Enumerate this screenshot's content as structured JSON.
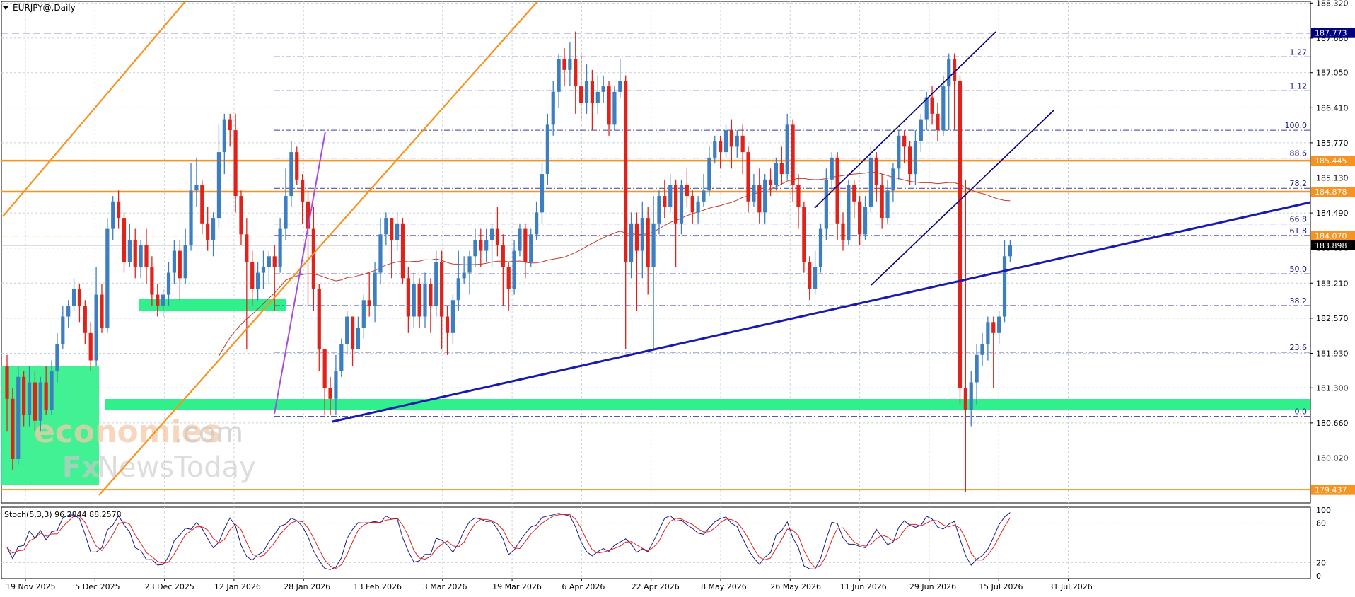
{
  "header": {
    "symbol_label": "EURJPY@,Daily"
  },
  "chart_data": {
    "type": "candlestick",
    "title": "EURJPY@,Daily",
    "ylim": [
      179.2,
      188.35
    ],
    "y_ticks": [
      188.32,
      187.68,
      187.05,
      186.41,
      185.77,
      185.13,
      184.49,
      183.85,
      183.21,
      182.57,
      181.93,
      181.3,
      180.66,
      180.02
    ],
    "x_ticks": [
      "19 Nov 2025",
      "5 Dec 2025",
      "23 Dec 2025",
      "12 Jan 2026",
      "28 Jan 2026",
      "13 Feb 2026",
      "3 Mar 2026",
      "19 Mar 2026",
      "6 Apr 2026",
      "22 Apr 2026",
      "8 May 2026",
      "26 May 2026",
      "11 Jun 2026",
      "29 Jun 2026",
      "15 Jul 2026",
      "31 Jul 2026"
    ],
    "price_labels": [
      {
        "value": "187.773",
        "color": "#000080"
      },
      {
        "value": "185.445",
        "color": "#f7931e"
      },
      {
        "value": "184.878",
        "color": "#f7931e"
      },
      {
        "value": "184.070",
        "color": "#f7931e"
      },
      {
        "value": "183.898",
        "color": "#000000"
      },
      {
        "value": "179.437",
        "color": "#f7931e"
      }
    ],
    "fib_levels": [
      {
        "label": "1.27",
        "price": 187.34
      },
      {
        "label": "1.12",
        "price": 186.72
      },
      {
        "label": "100.0",
        "price": 186.0
      },
      {
        "label": "88.6",
        "price": 185.49
      },
      {
        "label": "78.2",
        "price": 184.94
      },
      {
        "label": "66.8",
        "price": 184.29
      },
      {
        "label": "61.8",
        "price": 184.08
      },
      {
        "label": "50.0",
        "price": 183.38
      },
      {
        "label": "38.2",
        "price": 182.8
      },
      {
        "label": "23.6",
        "price": 181.95
      },
      {
        "label": "0.0",
        "price": 180.78
      }
    ],
    "candles": [
      [
        181.7,
        181.1,
        181.9,
        180.5
      ],
      [
        181.1,
        180.0,
        181.3,
        179.8
      ],
      [
        180.0,
        181.5,
        181.7,
        179.9
      ],
      [
        181.5,
        180.8,
        181.6,
        180.6
      ],
      [
        180.8,
        181.4,
        181.7,
        180.6
      ],
      [
        181.4,
        180.7,
        181.6,
        180.5
      ],
      [
        180.7,
        181.4,
        181.5,
        180.5
      ],
      [
        181.4,
        180.9,
        181.7,
        180.8
      ],
      [
        180.9,
        181.6,
        181.8,
        180.8
      ],
      [
        181.6,
        182.1,
        182.3,
        181.4
      ],
      [
        182.1,
        182.6,
        182.8,
        182.0
      ],
      [
        182.6,
        182.8,
        182.9,
        182.4
      ],
      [
        182.8,
        183.1,
        183.3,
        182.7
      ],
      [
        183.1,
        182.8,
        183.2,
        182.5
      ],
      [
        182.8,
        182.3,
        182.9,
        182.1
      ],
      [
        182.3,
        181.8,
        182.5,
        181.6
      ],
      [
        181.8,
        183.0,
        183.5,
        181.7
      ],
      [
        183.0,
        182.4,
        183.2,
        182.3
      ],
      [
        182.4,
        184.2,
        184.4,
        182.3
      ],
      [
        184.2,
        184.7,
        184.8,
        184.0
      ],
      [
        184.7,
        184.4,
        184.9,
        184.2
      ],
      [
        184.4,
        183.6,
        184.5,
        183.4
      ],
      [
        183.6,
        184.0,
        184.3,
        183.5
      ],
      [
        184.0,
        183.5,
        184.2,
        183.3
      ],
      [
        183.5,
        183.9,
        184.0,
        183.3
      ],
      [
        183.9,
        183.5,
        184.2,
        183.2
      ],
      [
        183.5,
        183.0,
        183.7,
        182.8
      ],
      [
        183.0,
        182.8,
        183.2,
        182.6
      ],
      [
        182.8,
        183.0,
        183.1,
        182.6
      ],
      [
        183.0,
        183.4,
        183.6,
        182.8
      ],
      [
        183.4,
        183.8,
        184.0,
        183.2
      ],
      [
        183.8,
        183.3,
        184.0,
        182.9
      ],
      [
        183.3,
        183.9,
        184.2,
        183.2
      ],
      [
        183.9,
        184.9,
        185.4,
        183.8
      ],
      [
        184.9,
        185.0,
        185.5,
        184.6
      ],
      [
        185.0,
        184.3,
        185.1,
        184.1
      ],
      [
        184.3,
        184.0,
        184.6,
        183.8
      ],
      [
        184.0,
        184.4,
        184.5,
        183.7
      ],
      [
        184.4,
        185.6,
        186.1,
        184.2
      ],
      [
        185.6,
        186.2,
        186.3,
        185.2
      ],
      [
        186.2,
        186.0,
        186.3,
        185.7
      ],
      [
        186.0,
        184.8,
        186.3,
        184.5
      ],
      [
        184.8,
        184.1,
        184.9,
        183.9
      ],
      [
        184.1,
        183.6,
        184.4,
        182.0
      ],
      [
        183.6,
        183.1,
        183.8,
        182.8
      ],
      [
        183.1,
        183.4,
        183.6,
        182.9
      ],
      [
        183.4,
        183.5,
        183.8,
        183.1
      ],
      [
        183.5,
        183.7,
        183.8,
        183.2
      ],
      [
        183.7,
        183.5,
        183.9,
        182.7
      ],
      [
        183.5,
        184.2,
        184.4,
        183.4
      ],
      [
        184.2,
        184.8,
        185.3,
        184.0
      ],
      [
        184.8,
        185.6,
        185.8,
        184.6
      ],
      [
        185.6,
        185.1,
        185.7,
        185.0
      ],
      [
        185.1,
        184.7,
        185.2,
        184.3
      ],
      [
        184.7,
        184.2,
        184.9,
        182.8
      ],
      [
        184.2,
        183.1,
        184.6,
        182.7
      ],
      [
        183.1,
        182.0,
        183.2,
        181.6
      ],
      [
        182.0,
        181.3,
        182.0,
        180.8
      ],
      [
        181.3,
        181.1,
        181.5,
        180.8
      ],
      [
        181.1,
        181.6,
        181.9,
        180.8
      ],
      [
        181.6,
        182.1,
        182.2,
        181.5
      ],
      [
        182.1,
        182.6,
        182.7,
        181.9
      ],
      [
        182.6,
        182.0,
        182.6,
        181.7
      ],
      [
        182.0,
        182.4,
        182.6,
        182.0
      ],
      [
        182.4,
        182.9,
        183.0,
        182.2
      ],
      [
        182.9,
        182.8,
        183.4,
        182.6
      ],
      [
        182.8,
        183.4,
        183.6,
        182.5
      ],
      [
        183.4,
        184.1,
        184.4,
        183.2
      ],
      [
        184.1,
        184.4,
        184.5,
        183.9
      ],
      [
        184.4,
        184.0,
        184.4,
        183.3
      ],
      [
        184.0,
        184.3,
        184.5,
        183.8
      ],
      [
        184.3,
        183.3,
        184.4,
        183.2
      ],
      [
        183.3,
        182.6,
        183.5,
        182.3
      ],
      [
        182.6,
        183.2,
        183.4,
        182.4
      ],
      [
        183.2,
        182.6,
        183.3,
        182.4
      ],
      [
        182.6,
        183.2,
        183.4,
        182.4
      ],
      [
        183.2,
        182.8,
        183.3,
        182.3
      ],
      [
        182.8,
        183.6,
        183.8,
        182.6
      ],
      [
        183.6,
        182.6,
        183.8,
        182.0
      ],
      [
        182.6,
        182.3,
        182.8,
        181.9
      ],
      [
        182.3,
        182.9,
        183.0,
        182.1
      ],
      [
        182.9,
        183.3,
        183.8,
        182.7
      ],
      [
        183.3,
        183.4,
        183.7,
        183.2
      ],
      [
        183.4,
        183.7,
        183.8,
        183.0
      ],
      [
        183.7,
        184.0,
        184.2,
        183.5
      ],
      [
        184.0,
        183.8,
        184.2,
        183.5
      ],
      [
        183.8,
        184.0,
        184.2,
        183.6
      ],
      [
        184.0,
        184.2,
        184.3,
        183.5
      ],
      [
        184.2,
        183.9,
        184.6,
        183.7
      ],
      [
        183.9,
        183.5,
        184.1,
        182.8
      ],
      [
        183.5,
        183.1,
        183.6,
        182.7
      ],
      [
        183.1,
        183.8,
        184.0,
        183.0
      ],
      [
        183.8,
        184.2,
        184.3,
        183.7
      ],
      [
        184.2,
        183.6,
        184.3,
        183.3
      ],
      [
        183.6,
        184.1,
        184.2,
        183.5
      ],
      [
        184.1,
        184.5,
        184.7,
        184.0
      ],
      [
        184.5,
        185.2,
        185.4,
        184.3
      ],
      [
        185.2,
        186.1,
        186.3,
        185.0
      ],
      [
        186.1,
        186.7,
        186.9,
        185.9
      ],
      [
        186.7,
        187.3,
        187.4,
        186.4
      ],
      [
        187.3,
        187.1,
        187.5,
        186.8
      ],
      [
        187.1,
        187.3,
        187.6,
        186.8
      ],
      [
        187.3,
        186.8,
        187.8,
        186.3
      ],
      [
        186.8,
        186.5,
        187.4,
        186.2
      ],
      [
        186.5,
        186.9,
        187.2,
        186.3
      ],
      [
        186.9,
        186.5,
        187.1,
        186.0
      ],
      [
        186.5,
        186.7,
        187.0,
        186.3
      ],
      [
        186.7,
        186.8,
        187.0,
        186.5
      ],
      [
        186.8,
        186.1,
        186.9,
        185.9
      ],
      [
        186.1,
        186.7,
        186.8,
        186.0
      ],
      [
        186.7,
        186.9,
        187.3,
        186.6
      ],
      [
        186.9,
        183.6,
        187.0,
        182.0
      ],
      [
        183.6,
        184.3,
        184.5,
        183.3
      ],
      [
        184.3,
        183.8,
        184.5,
        182.7
      ],
      [
        183.8,
        184.4,
        184.7,
        183.3
      ],
      [
        184.4,
        183.5,
        184.6,
        183.0
      ],
      [
        183.5,
        184.3,
        184.8,
        182.0
      ],
      [
        184.3,
        184.8,
        184.9,
        184.1
      ],
      [
        184.8,
        184.6,
        185.1,
        184.4
      ],
      [
        184.6,
        185.0,
        185.2,
        184.5
      ],
      [
        185.0,
        184.3,
        185.1,
        183.5
      ],
      [
        184.3,
        185.0,
        185.1,
        184.1
      ],
      [
        185.0,
        184.8,
        185.3,
        184.6
      ],
      [
        184.8,
        184.5,
        184.9,
        184.3
      ],
      [
        184.5,
        184.7,
        184.8,
        184.3
      ],
      [
        184.7,
        184.9,
        185.2,
        184.6
      ],
      [
        184.9,
        185.5,
        185.7,
        184.8
      ],
      [
        185.5,
        185.8,
        185.9,
        185.4
      ],
      [
        185.8,
        185.6,
        185.9,
        185.3
      ],
      [
        185.6,
        186.0,
        186.1,
        185.5
      ],
      [
        186.0,
        185.7,
        186.2,
        185.3
      ],
      [
        185.7,
        185.9,
        186.0,
        185.5
      ],
      [
        185.9,
        185.6,
        186.1,
        185.2
      ],
      [
        185.6,
        184.7,
        185.7,
        184.5
      ],
      [
        184.7,
        185.0,
        185.2,
        184.6
      ],
      [
        185.0,
        184.5,
        185.3,
        184.3
      ],
      [
        184.5,
        185.1,
        185.2,
        184.3
      ],
      [
        185.1,
        185.0,
        185.3,
        184.8
      ],
      [
        185.0,
        185.4,
        185.5,
        184.9
      ],
      [
        185.4,
        185.2,
        185.7,
        185.0
      ],
      [
        185.2,
        186.1,
        186.3,
        185.1
      ],
      [
        186.1,
        185.0,
        186.2,
        184.7
      ],
      [
        185.0,
        184.6,
        185.2,
        184.2
      ],
      [
        184.6,
        183.6,
        184.7,
        183.4
      ],
      [
        183.6,
        183.1,
        183.7,
        182.9
      ],
      [
        183.1,
        183.5,
        183.8,
        183.0
      ],
      [
        183.5,
        184.2,
        184.3,
        183.4
      ],
      [
        184.2,
        185.1,
        185.3,
        184.0
      ],
      [
        185.1,
        185.5,
        185.6,
        184.9
      ],
      [
        185.5,
        184.3,
        185.6,
        184.0
      ],
      [
        184.3,
        184.0,
        184.5,
        183.8
      ],
      [
        184.0,
        185.0,
        185.1,
        183.9
      ],
      [
        185.0,
        184.7,
        185.1,
        184.4
      ],
      [
        184.7,
        184.1,
        184.8,
        183.9
      ],
      [
        184.1,
        184.6,
        184.8,
        184.0
      ],
      [
        184.6,
        185.5,
        185.7,
        184.5
      ],
      [
        185.5,
        185.0,
        185.6,
        184.7
      ],
      [
        185.0,
        184.4,
        185.2,
        184.2
      ],
      [
        184.4,
        184.9,
        185.1,
        184.3
      ],
      [
        184.9,
        185.3,
        185.4,
        184.7
      ],
      [
        185.3,
        185.9,
        186.0,
        185.1
      ],
      [
        185.9,
        185.7,
        186.0,
        185.4
      ],
      [
        185.7,
        185.2,
        185.8,
        185.0
      ],
      [
        185.2,
        185.8,
        186.0,
        185.0
      ],
      [
        185.8,
        186.2,
        186.3,
        185.6
      ],
      [
        186.2,
        186.6,
        186.7,
        186.0
      ],
      [
        186.6,
        186.3,
        186.8,
        186.1
      ],
      [
        186.3,
        186.0,
        186.5,
        185.8
      ],
      [
        186.0,
        186.8,
        187.0,
        185.9
      ],
      [
        186.8,
        187.3,
        187.4,
        186.0
      ],
      [
        187.3,
        186.9,
        187.4,
        186.0
      ],
      [
        186.9,
        181.3,
        187.0,
        181.0
      ],
      [
        181.3,
        180.9,
        185.1,
        179.4
      ],
      [
        180.9,
        181.4,
        181.6,
        180.6
      ],
      [
        181.4,
        181.9,
        182.1,
        181.0
      ],
      [
        181.9,
        182.1,
        182.3,
        181.7
      ],
      [
        182.1,
        182.5,
        182.6,
        181.8
      ],
      [
        182.5,
        182.3,
        182.6,
        181.3
      ],
      [
        182.3,
        182.6,
        182.7,
        182.1
      ],
      [
        182.6,
        183.7,
        184.0,
        182.5
      ],
      [
        183.7,
        183.9,
        184.0,
        183.6
      ]
    ],
    "stoch": {
      "label": "Stoch(5,3,3) 96.2844 88.2578",
      "main": 96.2844,
      "signal": 88.2578,
      "levels": [
        100,
        80,
        20,
        0
      ]
    }
  }
}
